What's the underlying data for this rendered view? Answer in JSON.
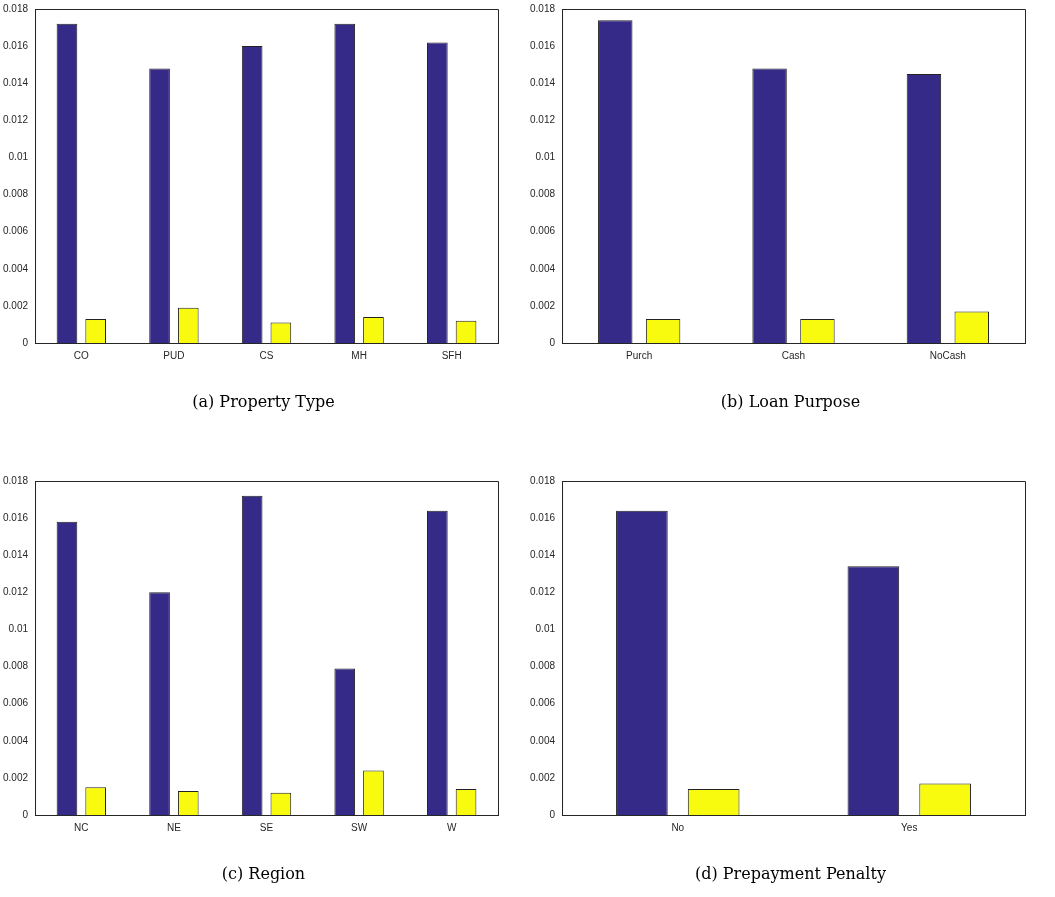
{
  "chart_data": [
    {
      "type": "bar",
      "title": "(a)  Property Type",
      "categories": [
        "CO",
        "PUD",
        "CS",
        "MH",
        "SFH"
      ],
      "series": [
        {
          "color": "#352a87",
          "values": [
            0.0172,
            0.0148,
            0.016,
            0.0172,
            0.0162
          ]
        },
        {
          "color": "#f9fb0e",
          "values": [
            0.0013,
            0.0019,
            0.0011,
            0.0014,
            0.0012
          ]
        }
      ],
      "ylim": [
        0,
        0.018
      ],
      "yticks": [
        0,
        0.002,
        0.004,
        0.006,
        0.008,
        0.01,
        0.012,
        0.014,
        0.016,
        0.018
      ],
      "legend": false
    },
    {
      "type": "bar",
      "title": "(b)  Loan Purpose",
      "categories": [
        "Purch",
        "Cash",
        "NoCash"
      ],
      "series": [
        {
          "color": "#352a87",
          "values": [
            0.0174,
            0.0148,
            0.0145
          ]
        },
        {
          "color": "#f9fb0e",
          "values": [
            0.0013,
            0.0013,
            0.0017
          ]
        }
      ],
      "ylim": [
        0,
        0.018
      ],
      "yticks": [
        0,
        0.002,
        0.004,
        0.006,
        0.008,
        0.01,
        0.012,
        0.014,
        0.016,
        0.018
      ],
      "legend": false
    },
    {
      "type": "bar",
      "title": "(c)  Region",
      "categories": [
        "NC",
        "NE",
        "SE",
        "SW",
        "W"
      ],
      "series": [
        {
          "color": "#352a87",
          "values": [
            0.0158,
            0.012,
            0.0172,
            0.0079,
            0.0164
          ]
        },
        {
          "color": "#f9fb0e",
          "values": [
            0.0015,
            0.0013,
            0.0012,
            0.0024,
            0.0014
          ]
        }
      ],
      "ylim": [
        0,
        0.018
      ],
      "yticks": [
        0,
        0.002,
        0.004,
        0.006,
        0.008,
        0.01,
        0.012,
        0.014,
        0.016,
        0.018
      ],
      "legend": false
    },
    {
      "type": "bar",
      "title": "(d)  Prepayment Penalty",
      "categories": [
        "No",
        "Yes"
      ],
      "series": [
        {
          "color": "#352a87",
          "values": [
            0.0164,
            0.0134
          ]
        },
        {
          "color": "#f9fb0e",
          "values": [
            0.0014,
            0.0017
          ]
        }
      ],
      "ylim": [
        0,
        0.018
      ],
      "yticks": [
        0,
        0.002,
        0.004,
        0.006,
        0.008,
        0.01,
        0.012,
        0.014,
        0.016,
        0.018
      ],
      "legend": false
    }
  ]
}
